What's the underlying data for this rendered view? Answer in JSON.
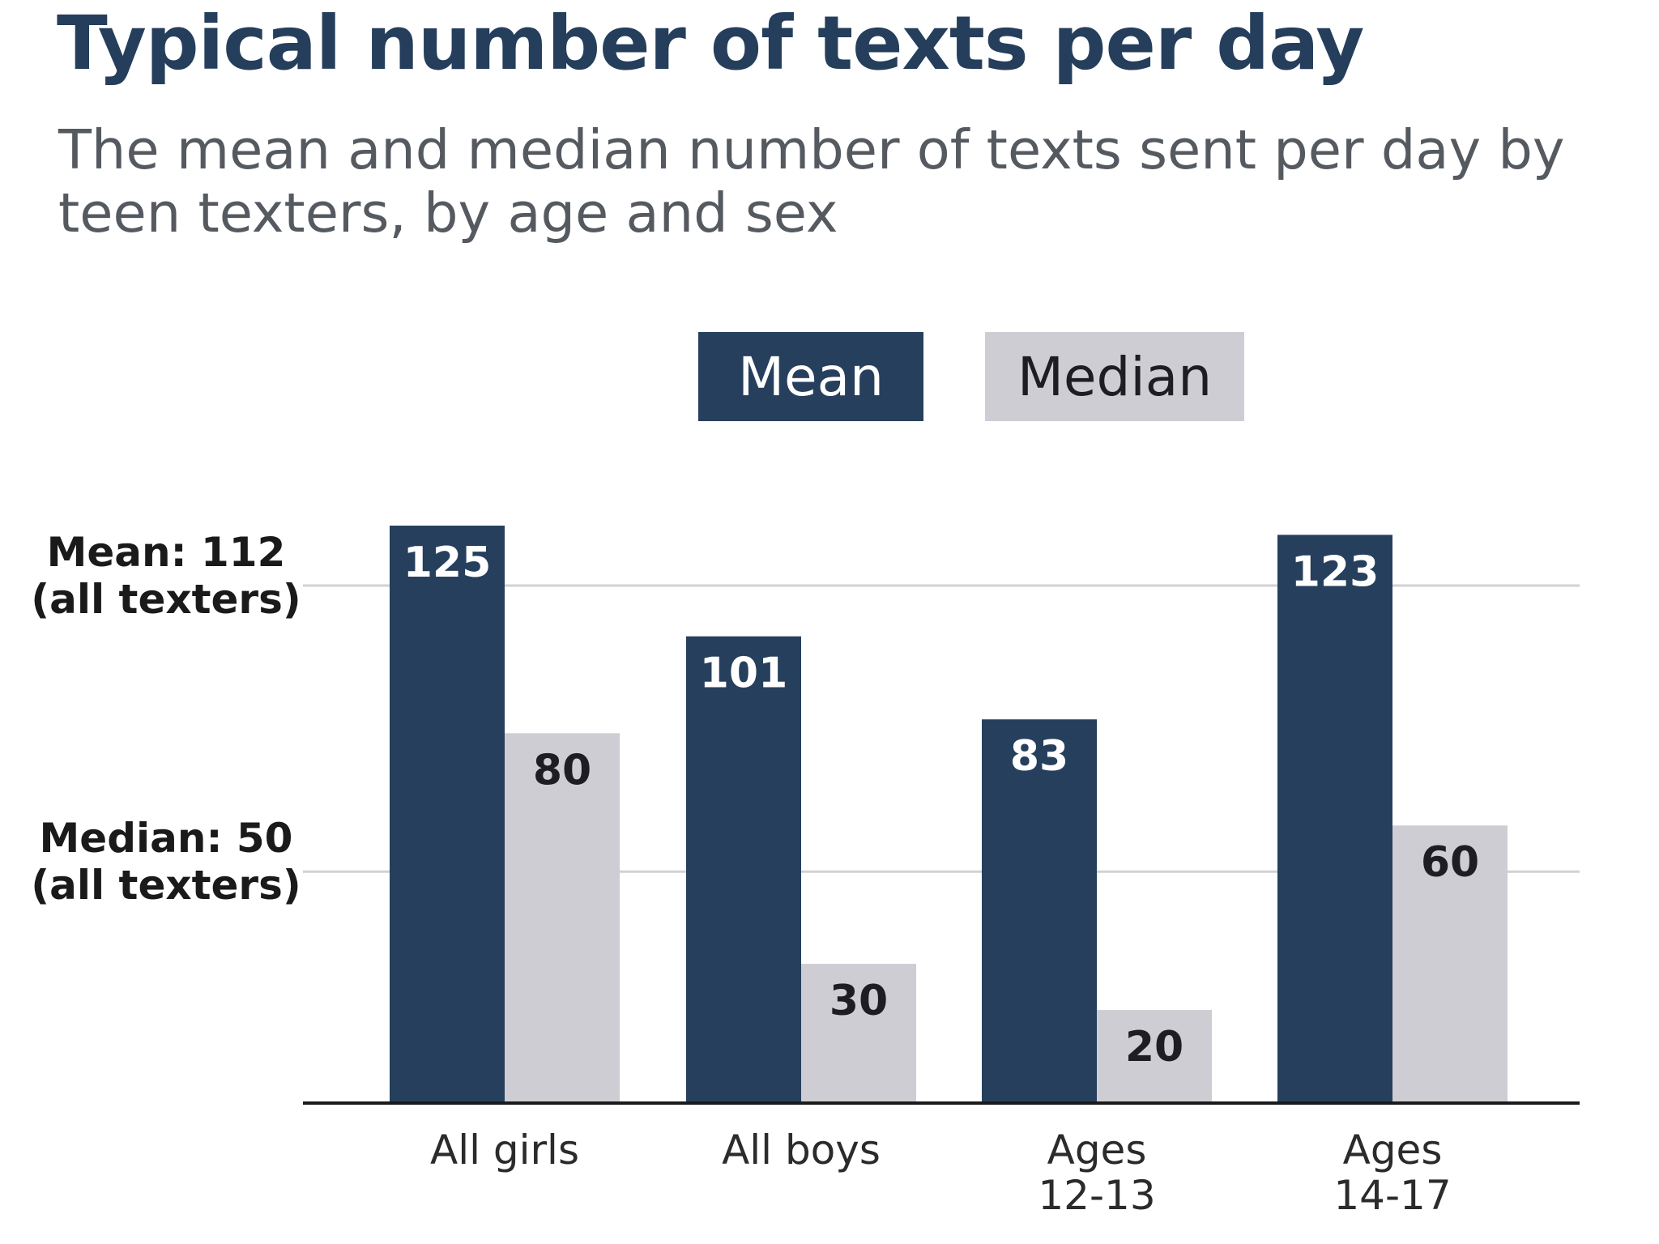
{
  "chart_data": {
    "type": "bar",
    "title": "Typical number of texts per day",
    "subtitle": "The mean and median number of texts sent per day by teen texters, by age and sex",
    "categories": [
      [
        "All girls"
      ],
      [
        "All boys"
      ],
      [
        "Ages",
        "12-13"
      ],
      [
        "Ages",
        "14-17"
      ]
    ],
    "series": [
      {
        "name": "Mean",
        "values": [
          125,
          101,
          83,
          123
        ],
        "color": "#263f5d",
        "label_color": "#ffffff"
      },
      {
        "name": "Median",
        "values": [
          80,
          30,
          20,
          60
        ],
        "color": "#cfcdd4",
        "label_color": "#1e1e22"
      }
    ],
    "reference_lines": [
      {
        "value": 112,
        "label": [
          "Mean: 112",
          "(all texters)"
        ]
      },
      {
        "value": 50,
        "label": [
          "Median: 50",
          "(all texters)"
        ]
      }
    ],
    "ylim": [
      0,
      125
    ],
    "legend_position": "top",
    "grid": false
  }
}
